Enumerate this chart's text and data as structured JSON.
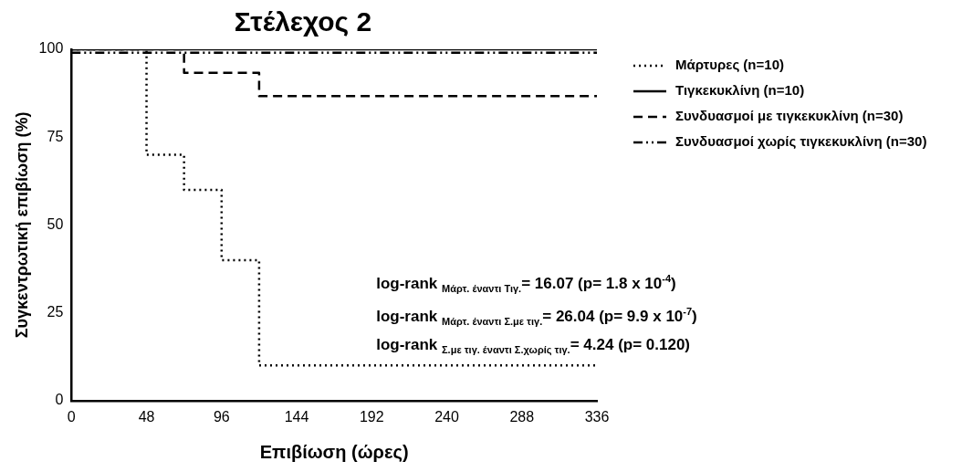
{
  "chart_data": {
    "type": "step",
    "title": "Στέλεχος 2",
    "xlabel": "Επιβίωση (ώρες)",
    "ylabel": "Συγκεντρωτική επιβίωση (%)",
    "xlim": [
      0,
      336
    ],
    "xticks": [
      0,
      48,
      96,
      144,
      192,
      240,
      288,
      336
    ],
    "ylim": [
      0,
      100
    ],
    "yticks": [
      0,
      25,
      50,
      75,
      100
    ],
    "grid": false,
    "legend": "right",
    "marker": "none",
    "series": [
      {
        "name": "Μάρτυρες (n=10)",
        "color": "#000000",
        "line_style": "dotted",
        "x": [
          0,
          48,
          72,
          96,
          120,
          336
        ],
        "values": [
          100,
          70,
          60,
          40,
          10,
          10
        ]
      },
      {
        "name": "Τιγκεκυκλίνη (n=10)",
        "color": "#000000",
        "line_style": "solid",
        "x": [
          0,
          336
        ],
        "values": [
          100,
          100
        ]
      },
      {
        "name": "Συνδυασμοί με τιγκεκυκλίνη (n=30)",
        "color": "#000000",
        "line_style": "dashed",
        "x": [
          0,
          72,
          120,
          336
        ],
        "values": [
          100,
          93.3,
          86.7,
          86.7
        ]
      },
      {
        "name": "Συνδυασμοί χωρίς τιγκεκυκλίνη (n=30)",
        "color": "#000000",
        "line_style": "dashdot",
        "x": [
          0,
          336
        ],
        "values": [
          99,
          99
        ]
      }
    ],
    "annotations": [
      "log-rank $_{Μάρτ. έναντι Τιγ.}$= 16.07 (p= 1.8 x 10$^{-4}$)",
      "log-rank $_{Μάρτ. έναντι Σ.με τιγ.}$= 26.04 (p= 9.9 x 10$^{-7}$)",
      "log-rank $_{Σ.με τιγ. έναντι Σ.χωρίς τιγ.}$= 4.24 (p= 0.120)"
    ]
  }
}
